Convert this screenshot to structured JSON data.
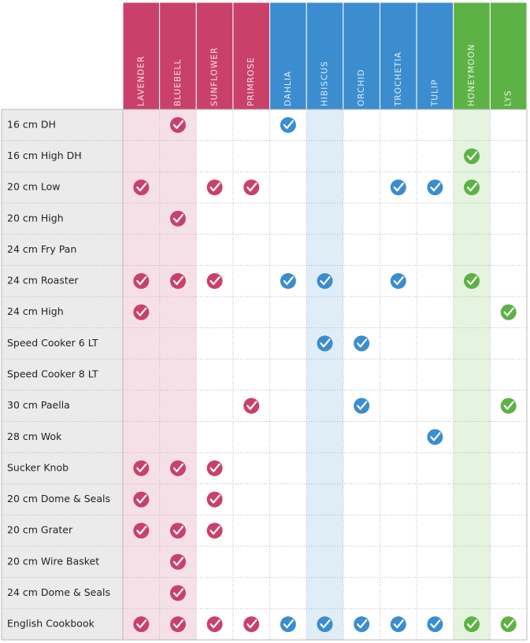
{
  "groups": {
    "pink": "#c9416b",
    "blue": "#3b8dcf",
    "green": "#5db246"
  },
  "columns": [
    {
      "name": "LAVENDER",
      "group": "pink",
      "highlight": true
    },
    {
      "name": "BLUEBELL",
      "group": "pink",
      "highlight": true
    },
    {
      "name": "SUNFLOWER",
      "group": "pink",
      "highlight": false
    },
    {
      "name": "PRIMROSE",
      "group": "pink",
      "highlight": false
    },
    {
      "name": "DAHLIA",
      "group": "blue",
      "highlight": false
    },
    {
      "name": "HIBISCUS",
      "group": "blue",
      "highlight": true
    },
    {
      "name": "ORCHID",
      "group": "blue",
      "highlight": false
    },
    {
      "name": "TROCHETIA",
      "group": "blue",
      "highlight": false
    },
    {
      "name": "TULIP",
      "group": "blue",
      "highlight": false
    },
    {
      "name": "HONEYMOON",
      "group": "green",
      "highlight": true
    },
    {
      "name": "LYS",
      "group": "green",
      "highlight": false
    }
  ],
  "rows": [
    {
      "label": "16 cm DH",
      "cells": [
        false,
        true,
        false,
        false,
        true,
        false,
        false,
        false,
        false,
        false,
        false
      ]
    },
    {
      "label": "16 cm High DH",
      "cells": [
        false,
        false,
        false,
        false,
        false,
        false,
        false,
        false,
        false,
        true,
        false
      ]
    },
    {
      "label": "20 cm Low",
      "cells": [
        true,
        false,
        true,
        true,
        false,
        false,
        false,
        true,
        true,
        true,
        false
      ]
    },
    {
      "label": "20 cm High",
      "cells": [
        false,
        true,
        false,
        false,
        false,
        false,
        false,
        false,
        false,
        false,
        false
      ]
    },
    {
      "label": "24 cm Fry Pan",
      "cells": [
        false,
        false,
        false,
        false,
        false,
        false,
        false,
        false,
        false,
        false,
        false
      ]
    },
    {
      "label": "24 cm Roaster",
      "cells": [
        true,
        true,
        true,
        false,
        true,
        true,
        false,
        true,
        false,
        true,
        false
      ]
    },
    {
      "label": "24 cm High",
      "cells": [
        true,
        false,
        false,
        false,
        false,
        false,
        false,
        false,
        false,
        false,
        true
      ]
    },
    {
      "label": "Speed Cooker 6 LT",
      "cells": [
        false,
        false,
        false,
        false,
        false,
        true,
        true,
        false,
        false,
        false,
        false
      ]
    },
    {
      "label": "Speed Cooker 8 LT",
      "cells": [
        false,
        false,
        false,
        false,
        false,
        false,
        false,
        false,
        false,
        false,
        false
      ]
    },
    {
      "label": "30 cm Paella",
      "cells": [
        false,
        false,
        false,
        true,
        false,
        false,
        true,
        false,
        false,
        false,
        true
      ]
    },
    {
      "label": "28 cm Wok",
      "cells": [
        false,
        false,
        false,
        false,
        false,
        false,
        false,
        false,
        true,
        false,
        false
      ]
    },
    {
      "label": "Sucker Knob",
      "cells": [
        true,
        true,
        true,
        false,
        false,
        false,
        false,
        false,
        false,
        false,
        false
      ]
    },
    {
      "label": "20 cm Dome & Seals",
      "cells": [
        true,
        false,
        true,
        false,
        false,
        false,
        false,
        false,
        false,
        false,
        false
      ]
    },
    {
      "label": "20 cm Grater",
      "cells": [
        true,
        true,
        true,
        false,
        false,
        false,
        false,
        false,
        false,
        false,
        false
      ]
    },
    {
      "label": "20 cm Wire Basket",
      "cells": [
        false,
        true,
        false,
        false,
        false,
        false,
        false,
        false,
        false,
        false,
        false
      ]
    },
    {
      "label": "24 cm Dome & Seals",
      "cells": [
        false,
        true,
        false,
        false,
        false,
        false,
        false,
        false,
        false,
        false,
        false
      ]
    },
    {
      "label": "English Cookbook",
      "cells": [
        true,
        true,
        true,
        true,
        true,
        true,
        true,
        true,
        true,
        true,
        true
      ]
    }
  ]
}
